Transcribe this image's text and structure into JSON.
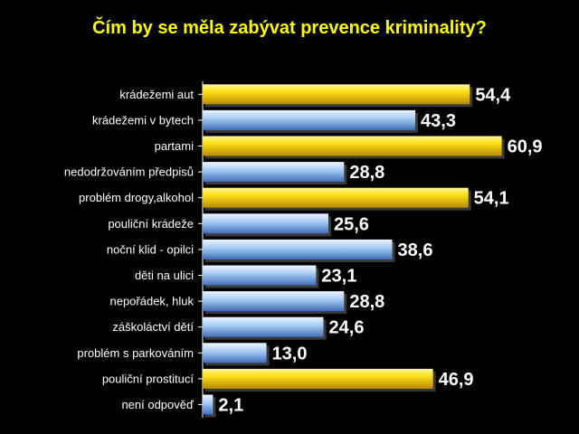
{
  "chart_data": {
    "type": "bar",
    "orientation": "horizontal",
    "title": "Čím by se měla zabývat prevence kriminality?",
    "xlabel": "",
    "ylabel": "",
    "xlim": [
      0,
      70
    ],
    "grid": false,
    "legend": "none",
    "categories": [
      "krádežemi aut",
      "krádežemi v bytech",
      "partami",
      "nedodržováním předpisů",
      "problém drogy,alkohol",
      "pouliční krádeže",
      "noční klid - opilci",
      "děti na ulici",
      "nepořádek, hluk",
      "záškoláctví dětí",
      "problém s parkováním",
      "pouliční prostitucí",
      "není odpověď"
    ],
    "values": [
      54.4,
      43.3,
      60.9,
      28.8,
      54.1,
      25.6,
      38.6,
      23.1,
      28.8,
      24.6,
      13.0,
      46.9,
      2.1
    ],
    "value_labels": [
      "54,4",
      "43,3",
      "60,9",
      "28,8",
      "54,1",
      "25,6",
      "38,6",
      "23,1",
      "28,8",
      "24,6",
      "13,0",
      "46,9",
      "2,1"
    ],
    "highlight": [
      true,
      false,
      true,
      false,
      true,
      false,
      false,
      false,
      false,
      false,
      false,
      true,
      false
    ],
    "colors": {
      "highlight": "#ffd400",
      "normal": "#9dc3f0",
      "title": "#ffff00",
      "text": "#ffffff",
      "background": "#000000"
    }
  }
}
